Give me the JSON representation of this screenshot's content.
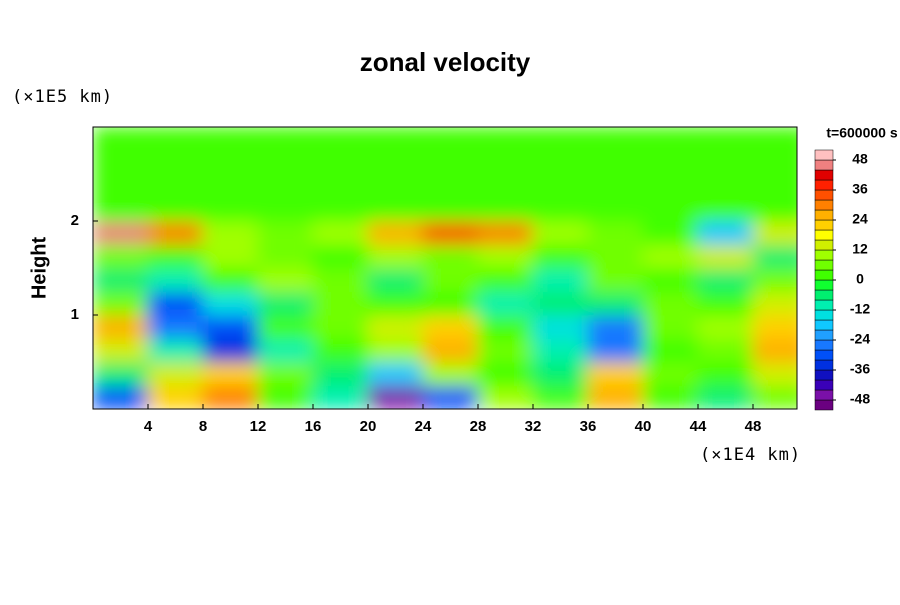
{
  "chart_data": {
    "type": "heatmap",
    "title": "zonal velocity",
    "time_label": "t=600000 s",
    "ylabel": "Height",
    "y_unit": "(×1E5 km)",
    "x_unit": "(×1E4 km)",
    "xlim": [
      0,
      51.2
    ],
    "ylim": [
      0,
      3
    ],
    "xticks": [
      4,
      8,
      12,
      16,
      20,
      24,
      28,
      32,
      36,
      40,
      44,
      48
    ],
    "yticks": [
      1,
      2
    ],
    "clim": [
      -52,
      52
    ],
    "cticks": [
      48,
      36,
      24,
      12,
      0,
      -12,
      -24,
      -36,
      -48
    ],
    "colors": [
      "#6a0080",
      "#7a10a8",
      "#3a00b8",
      "#1010c0",
      "#0030e0",
      "#0050f8",
      "#1878ff",
      "#20a0ff",
      "#10c8ff",
      "#00e0e0",
      "#00f0b0",
      "#00f070",
      "#10ff30",
      "#40ff00",
      "#70ff00",
      "#a0ff00",
      "#d0f000",
      "#ffff00",
      "#ffd000",
      "#ffb000",
      "#ff8000",
      "#ff5000",
      "#ff2000",
      "#e00000",
      "#f08080",
      "#ffc0c0"
    ],
    "x": [
      2,
      6,
      10,
      14,
      18,
      22,
      26,
      30,
      34,
      38,
      42,
      46,
      50
    ],
    "y": [
      0.125,
      0.375,
      0.625,
      0.875,
      1.125,
      1.375,
      1.625,
      1.875,
      2.125,
      2.375,
      2.625,
      2.875
    ],
    "z": [
      [
        -30,
        20,
        30,
        0,
        -10,
        -45,
        -30,
        10,
        0,
        25,
        0,
        -5,
        5
      ],
      [
        -5,
        15,
        20,
        5,
        -5,
        -20,
        10,
        0,
        -5,
        20,
        5,
        0,
        15
      ],
      [
        15,
        -10,
        -35,
        -10,
        0,
        10,
        25,
        5,
        -10,
        -25,
        0,
        5,
        25
      ],
      [
        25,
        -25,
        -30,
        0,
        5,
        15,
        20,
        0,
        -15,
        -25,
        5,
        10,
        20
      ],
      [
        5,
        -30,
        -15,
        -5,
        5,
        0,
        0,
        -10,
        -5,
        -5,
        5,
        0,
        15
      ],
      [
        -5,
        -10,
        0,
        10,
        5,
        -5,
        5,
        0,
        -10,
        5,
        0,
        -5,
        5
      ],
      [
        5,
        0,
        10,
        5,
        0,
        10,
        5,
        10,
        0,
        5,
        10,
        15,
        -5
      ],
      [
        45,
        30,
        10,
        5,
        10,
        25,
        35,
        30,
        10,
        5,
        0,
        -20,
        15
      ],
      [
        2,
        2,
        0,
        0,
        0,
        0,
        0,
        0,
        0,
        0,
        0,
        0,
        0
      ],
      [
        0,
        0,
        0,
        0,
        0,
        0,
        0,
        0,
        0,
        0,
        0,
        0,
        0
      ],
      [
        0,
        0,
        0,
        0,
        0,
        0,
        0,
        0,
        0,
        0,
        0,
        0,
        0
      ],
      [
        0,
        0,
        0,
        0,
        0,
        0,
        0,
        0,
        0,
        0,
        0,
        0,
        0
      ]
    ]
  }
}
